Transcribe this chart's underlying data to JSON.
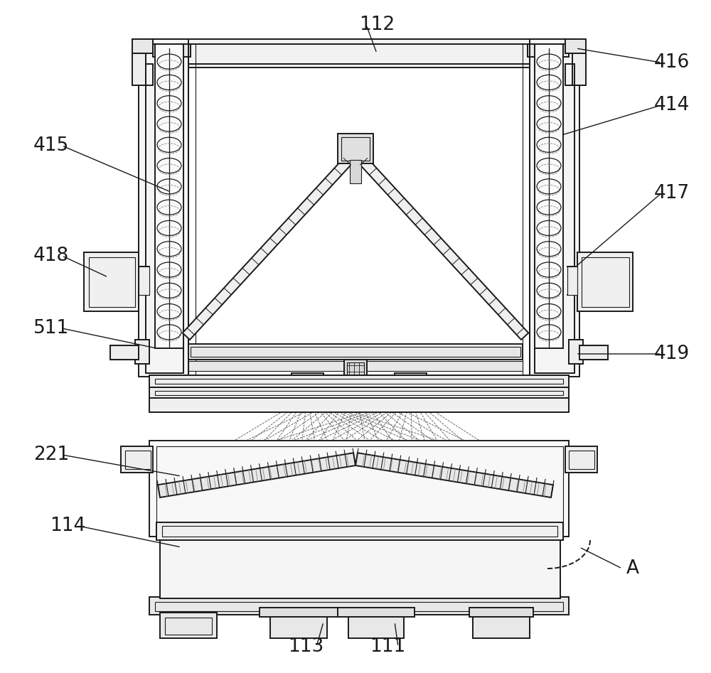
{
  "bg_color": "#ffffff",
  "lc": "#1a1a1a",
  "lw_main": 1.4,
  "lw_thin": 0.8,
  "lw_thick": 2.0,
  "fig_w": 10.0,
  "fig_h": 9.47,
  "labels": [
    [
      "112",
      530,
      35,
      530,
      75
    ],
    [
      "416",
      945,
      88,
      810,
      68
    ],
    [
      "414",
      945,
      148,
      790,
      190
    ],
    [
      "415",
      72,
      205,
      240,
      270
    ],
    [
      "417",
      945,
      272,
      810,
      375
    ],
    [
      "418",
      72,
      360,
      152,
      390
    ],
    [
      "511",
      72,
      462,
      220,
      490
    ],
    [
      "419",
      945,
      498,
      810,
      498
    ],
    [
      "221",
      72,
      640,
      255,
      670
    ],
    [
      "114",
      95,
      740,
      255,
      770
    ],
    [
      "113",
      430,
      910,
      455,
      875
    ],
    [
      "111",
      545,
      910,
      555,
      875
    ],
    [
      "A",
      890,
      800,
      815,
      770
    ]
  ]
}
